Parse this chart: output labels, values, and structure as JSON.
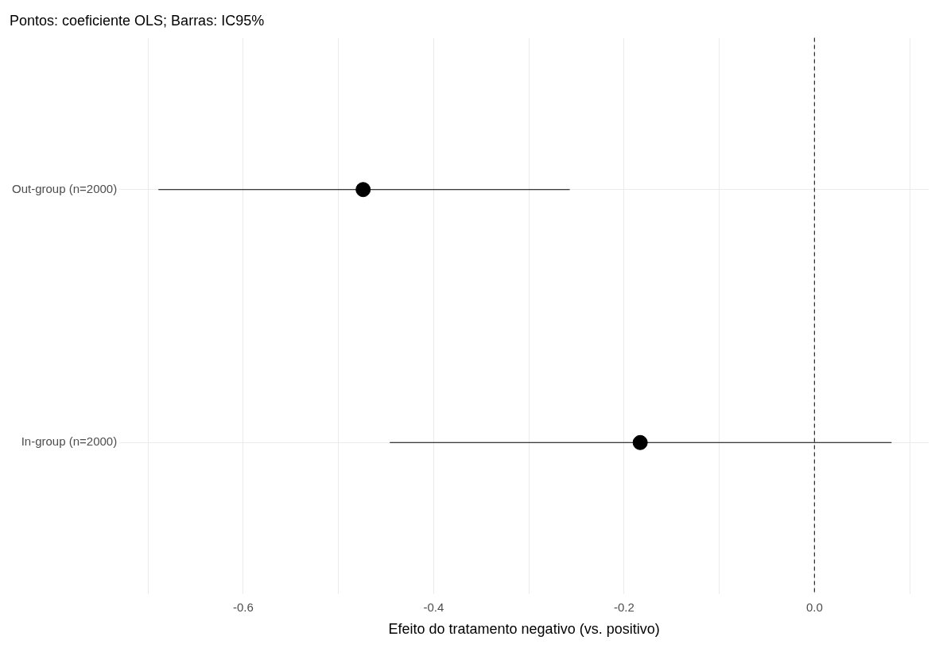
{
  "chart_data": {
    "type": "scatter",
    "orientation": "horizontal",
    "title": "Pontos: coeficiente OLS; Barras: IC95%",
    "xlabel": "Efeito do tratamento negativo (vs. positivo)",
    "categories": [
      "Out-group (n=2000)",
      "In-group (n=2000)"
    ],
    "values": [
      -0.474,
      -0.183
    ],
    "errors": [
      [
        -0.689,
        -0.257
      ],
      [
        -0.446,
        0.081
      ]
    ],
    "color": "#000000",
    "marker": "circle",
    "xlim": [
      -0.73,
      0.12
    ],
    "xticks": [
      {
        "value": -0.7,
        "label": null
      },
      {
        "value": -0.6,
        "label": "-0.6"
      },
      {
        "value": -0.5,
        "label": null
      },
      {
        "value": -0.4,
        "label": "-0.4"
      },
      {
        "value": -0.3,
        "label": null
      },
      {
        "value": -0.2,
        "label": "-0.2"
      },
      {
        "value": -0.1,
        "label": null
      },
      {
        "value": 0,
        "label": "0.0"
      },
      {
        "value": 0.1,
        "label": null
      }
    ],
    "ref_lines": [
      {
        "axis": "x",
        "value": 0,
        "line_style": "dashed",
        "color": "#000000"
      }
    ],
    "grid": true
  }
}
